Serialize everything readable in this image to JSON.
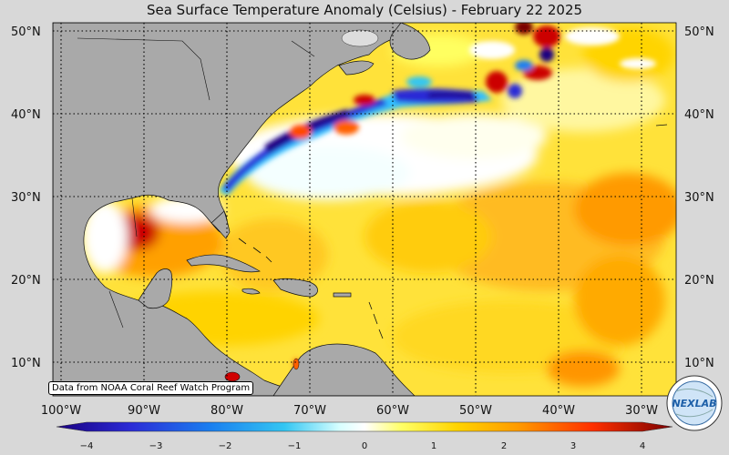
{
  "title": "Sea Surface Temperature Anomaly (Celsius) - February 22 2025",
  "credit": "Data from NOAA Coral Reef Watch Program",
  "logo_text": "NEXLAB",
  "lat_labels": [
    "50°N",
    "40°N",
    "30°N",
    "20°N",
    "10°N"
  ],
  "lon_labels": [
    "100°W",
    "90°W",
    "80°W",
    "70°W",
    "60°W",
    "50°W",
    "40°W",
    "30°W"
  ],
  "colorbar": {
    "ticks": [
      "−4",
      "−3",
      "−2",
      "−1",
      "0",
      "1",
      "2",
      "3",
      "4"
    ],
    "range": [
      -4,
      4
    ],
    "colors": [
      "#1a0080",
      "#2b2bd6",
      "#1a7ff0",
      "#33c6f2",
      "#9fefff",
      "#ffffff",
      "#ffff66",
      "#ffd400",
      "#ff9a00",
      "#ff4800",
      "#cc0000",
      "#7a0000"
    ]
  },
  "colors": {
    "land": "#a9a9a9",
    "ocean_base": "#ffee2a",
    "background": "#d8d8d8"
  }
}
